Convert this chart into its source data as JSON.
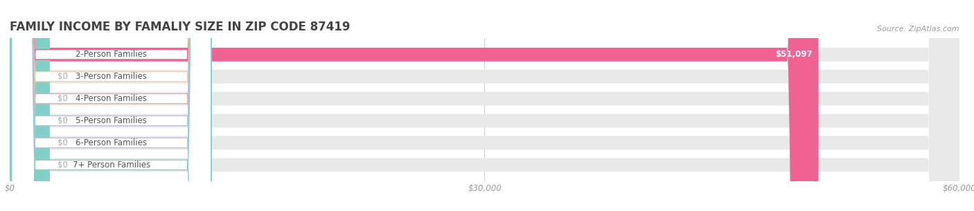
{
  "title": "FAMILY INCOME BY FAMALIY SIZE IN ZIP CODE 87419",
  "source": "Source: ZipAtlas.com",
  "categories": [
    "2-Person Families",
    "3-Person Families",
    "4-Person Families",
    "5-Person Families",
    "6-Person Families",
    "7+ Person Families"
  ],
  "values": [
    51097,
    0,
    0,
    0,
    0,
    0
  ],
  "bar_colors": [
    "#f06292",
    "#ffcc99",
    "#f4a9a0",
    "#aec6e8",
    "#c9b8e8",
    "#80d0c8"
  ],
  "xlim": [
    0,
    60000
  ],
  "xticks": [
    0,
    30000,
    60000
  ],
  "xtick_labels": [
    "$0",
    "$30,000",
    "$60,000"
  ],
  "value_labels": [
    "$51,097",
    "$0",
    "$0",
    "$0",
    "$0",
    "$0"
  ],
  "background_color": "#ffffff",
  "bar_bg_color": "#e8e8e8",
  "title_fontsize": 12,
  "bar_height": 0.62,
  "label_fontsize": 8.5
}
